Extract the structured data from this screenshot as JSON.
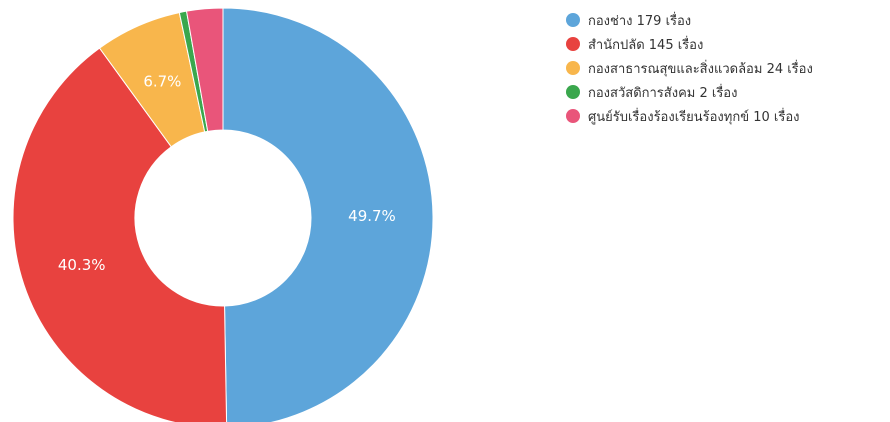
{
  "chart_data": {
    "type": "pie",
    "donut": true,
    "categories": [
      "กองช่าง 179 เรื่อง",
      "สำนักปลัด 145 เรื่อง",
      "กองสาธารณสุขและสิ่งแวดล้อม 24 เรื่อง",
      "กองสวัสดิการสังคม 2 เรื่อง",
      "ศูนย์รับเรื่องร้องเรียนร้องทุกข์ 10 เรื่อง"
    ],
    "values": [
      179,
      145,
      24,
      2,
      10
    ],
    "data_labels": [
      "49.7%",
      "40.3%",
      "6.7%",
      "",
      ""
    ],
    "colors": [
      "#5DA5DA",
      "#E8423F",
      "#F8B64C",
      "#3AA74D",
      "#E9557A"
    ],
    "title": "",
    "legend_position": "top-right"
  }
}
